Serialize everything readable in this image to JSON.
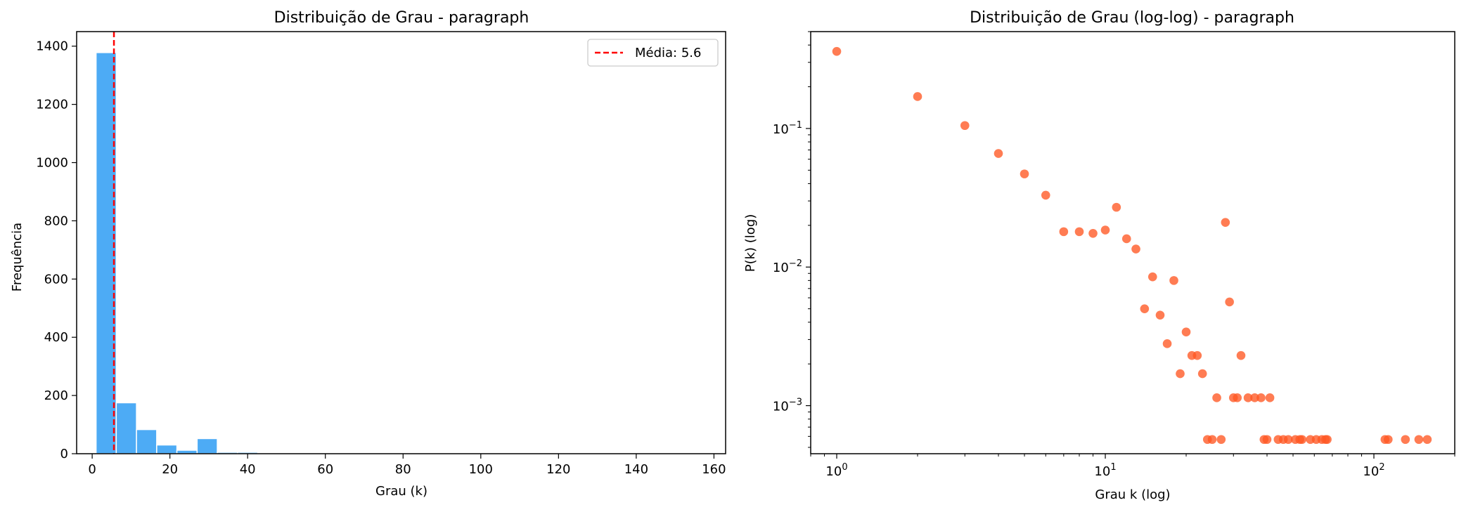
{
  "chart_data": [
    {
      "type": "bar",
      "title": "Distribuição de Grau - paragraph",
      "xlabel": "Grau (k)",
      "ylabel": "Frequência",
      "xlim": [
        -4,
        163
      ],
      "ylim": [
        0,
        1450
      ],
      "xticks": [
        0,
        20,
        40,
        60,
        80,
        100,
        120,
        140,
        160
      ],
      "yticks": [
        0,
        200,
        400,
        600,
        800,
        1000,
        1200,
        1400
      ],
      "bin_width": 5.2,
      "bin_starts": [
        1,
        6.2,
        11.4,
        16.6,
        21.8,
        27,
        32.2,
        37.4
      ],
      "values": [
        1378,
        175,
        83,
        30,
        12,
        52,
        5,
        5
      ],
      "bar_color": "#2196F3",
      "mean_line": {
        "value": 5.6,
        "color": "#FF0000",
        "label": "Média: 5.6"
      },
      "legend": {
        "position": "top-right",
        "entries": [
          "Média: 5.6"
        ]
      },
      "grid": false
    },
    {
      "type": "scatter",
      "title": "Distribuição de Grau (log-log) - paragraph",
      "xlabel": "Grau k (log)",
      "ylabel": "P(k) (log)",
      "xscale": "log",
      "yscale": "log",
      "xlim": [
        0.8,
        200
      ],
      "ylim": [
        0.00045,
        0.5
      ],
      "xticks": [
        {
          "value": 1,
          "base": "10",
          "exp": "0"
        },
        {
          "value": 10,
          "base": "10",
          "exp": "1"
        },
        {
          "value": 100,
          "base": "10",
          "exp": "2"
        }
      ],
      "yticks": [
        {
          "value": 0.001,
          "base": "10",
          "exp": "−3"
        },
        {
          "value": 0.01,
          "base": "10",
          "exp": "−2"
        },
        {
          "value": 0.1,
          "base": "10",
          "exp": "−1"
        }
      ],
      "point_color": "#FF5722",
      "grid": false,
      "points": [
        [
          1,
          0.36
        ],
        [
          2,
          0.17
        ],
        [
          3,
          0.105
        ],
        [
          4,
          0.066
        ],
        [
          5,
          0.047
        ],
        [
          6,
          0.033
        ],
        [
          7,
          0.018
        ],
        [
          8,
          0.018
        ],
        [
          9,
          0.0175
        ],
        [
          10,
          0.0185
        ],
        [
          11,
          0.027
        ],
        [
          12,
          0.016
        ],
        [
          13,
          0.0135
        ],
        [
          14,
          0.005
        ],
        [
          15,
          0.0085
        ],
        [
          16,
          0.0045
        ],
        [
          17,
          0.0028
        ],
        [
          18,
          0.008
        ],
        [
          19,
          0.0017
        ],
        [
          20,
          0.0034
        ],
        [
          21,
          0.0023
        ],
        [
          22,
          0.0023
        ],
        [
          23,
          0.0017
        ],
        [
          24,
          0.00057
        ],
        [
          25,
          0.00057
        ],
        [
          26,
          0.00114
        ],
        [
          27,
          0.00057
        ],
        [
          28,
          0.021
        ],
        [
          29,
          0.0056
        ],
        [
          30,
          0.00114
        ],
        [
          31,
          0.00114
        ],
        [
          32,
          0.0023
        ],
        [
          34,
          0.00114
        ],
        [
          36,
          0.00114
        ],
        [
          38,
          0.00114
        ],
        [
          39,
          0.00057
        ],
        [
          40,
          0.00057
        ],
        [
          41,
          0.00114
        ],
        [
          44,
          0.00057
        ],
        [
          46,
          0.00057
        ],
        [
          48,
          0.00057
        ],
        [
          51,
          0.00057
        ],
        [
          53,
          0.00057
        ],
        [
          54,
          0.00057
        ],
        [
          58,
          0.00057
        ],
        [
          61,
          0.00057
        ],
        [
          64,
          0.00057
        ],
        [
          66,
          0.00057
        ],
        [
          67,
          0.00057
        ],
        [
          110,
          0.00057
        ],
        [
          113,
          0.00057
        ],
        [
          131,
          0.00057
        ],
        [
          147,
          0.00057
        ],
        [
          158,
          0.00057
        ]
      ]
    }
  ]
}
